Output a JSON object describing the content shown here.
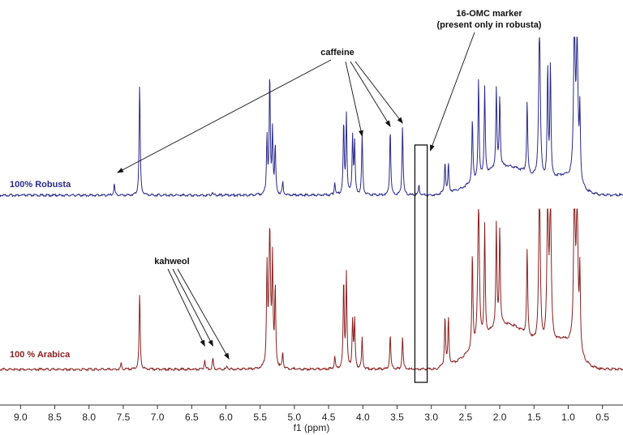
{
  "chart_data": {
    "type": "line",
    "xlabel": "f1 (ppm)",
    "x_reversed": true,
    "xlim": [
      9.3,
      0.2
    ],
    "ticks": [
      9.0,
      8.5,
      8.0,
      7.5,
      7.0,
      6.5,
      6.0,
      5.5,
      5.0,
      4.5,
      4.0,
      3.5,
      3.0,
      2.5,
      2.0,
      1.5,
      1.0,
      0.5
    ],
    "tick_labels": [
      "9.0",
      "8.5",
      "8.0",
      "7.5",
      "7.0",
      "6.5",
      "6.0",
      "5.5",
      "5.0",
      "4.5",
      "4.0",
      "3.5",
      "3.0",
      "2.5",
      "2.0",
      "1.5",
      "1.0",
      "0.5"
    ],
    "grid": false,
    "series": [
      {
        "name": "100%  Robusta",
        "color": "#2a2a8c",
        "peaks": [
          {
            "x": 7.63,
            "h": 0.07
          },
          {
            "x": 7.26,
            "h": 0.7
          },
          {
            "x": 6.2,
            "h": 0.02
          },
          {
            "x": 5.4,
            "h": 0.36
          },
          {
            "x": 5.36,
            "h": 0.75
          },
          {
            "x": 5.32,
            "h": 0.4
          },
          {
            "x": 5.28,
            "h": 0.3
          },
          {
            "x": 5.17,
            "h": 0.08
          },
          {
            "x": 4.41,
            "h": 0.08
          },
          {
            "x": 4.28,
            "h": 0.45
          },
          {
            "x": 4.24,
            "h": 0.5
          },
          {
            "x": 4.15,
            "h": 0.36
          },
          {
            "x": 4.12,
            "h": 0.32
          },
          {
            "x": 4.01,
            "h": 0.38
          },
          {
            "x": 3.6,
            "h": 0.42
          },
          {
            "x": 3.42,
            "h": 0.44
          },
          {
            "x": 3.18,
            "h": 0.06
          },
          {
            "x": 2.8,
            "h": 0.2
          },
          {
            "x": 2.75,
            "h": 0.18
          },
          {
            "x": 2.4,
            "h": 0.4
          },
          {
            "x": 2.31,
            "h": 0.62
          },
          {
            "x": 2.22,
            "h": 0.55
          },
          {
            "x": 2.05,
            "h": 0.5
          },
          {
            "x": 2.0,
            "h": 0.45
          },
          {
            "x": 1.6,
            "h": 0.45
          },
          {
            "x": 1.42,
            "h": 1.0
          },
          {
            "x": 1.3,
            "h": 0.7
          },
          {
            "x": 1.26,
            "h": 0.72
          },
          {
            "x": 0.91,
            "h": 1.0
          },
          {
            "x": 0.87,
            "h": 0.9
          },
          {
            "x": 0.83,
            "h": 0.45
          }
        ]
      },
      {
        "name": "100 % Arabica",
        "color": "#8b2020",
        "peaks": [
          {
            "x": 7.53,
            "h": 0.04
          },
          {
            "x": 7.26,
            "h": 0.48
          },
          {
            "x": 6.31,
            "h": 0.06
          },
          {
            "x": 6.19,
            "h": 0.07
          },
          {
            "x": 5.98,
            "h": 0.02
          },
          {
            "x": 5.4,
            "h": 0.6
          },
          {
            "x": 5.36,
            "h": 0.85
          },
          {
            "x": 5.32,
            "h": 0.65
          },
          {
            "x": 5.28,
            "h": 0.5
          },
          {
            "x": 5.17,
            "h": 0.1
          },
          {
            "x": 4.41,
            "h": 0.08
          },
          {
            "x": 4.28,
            "h": 0.55
          },
          {
            "x": 4.24,
            "h": 0.6
          },
          {
            "x": 4.15,
            "h": 0.3
          },
          {
            "x": 4.12,
            "h": 0.3
          },
          {
            "x": 4.01,
            "h": 0.2
          },
          {
            "x": 3.6,
            "h": 0.22
          },
          {
            "x": 3.42,
            "h": 0.21
          },
          {
            "x": 2.8,
            "h": 0.32
          },
          {
            "x": 2.75,
            "h": 0.3
          },
          {
            "x": 2.4,
            "h": 0.6
          },
          {
            "x": 2.31,
            "h": 0.9
          },
          {
            "x": 2.22,
            "h": 0.7
          },
          {
            "x": 2.05,
            "h": 0.65
          },
          {
            "x": 2.0,
            "h": 0.62
          },
          {
            "x": 1.6,
            "h": 0.55
          },
          {
            "x": 1.42,
            "h": 1.0
          },
          {
            "x": 1.3,
            "h": 0.85
          },
          {
            "x": 1.26,
            "h": 0.88
          },
          {
            "x": 0.91,
            "h": 1.0
          },
          {
            "x": 0.87,
            "h": 0.95
          },
          {
            "x": 0.83,
            "h": 0.5
          }
        ]
      }
    ],
    "annotations": [
      {
        "id": "caffeine",
        "text": "caffeine",
        "targets_ppm": [
          7.63,
          4.01,
          3.6,
          3.42
        ]
      },
      {
        "id": "kahweol",
        "text": "kahweol",
        "targets_ppm": [
          6.31,
          6.19,
          5.98
        ]
      },
      {
        "id": "omc",
        "lines": [
          "16-OMC marker",
          "(present only in robusta)"
        ],
        "target_ppm": 3.18
      },
      {
        "id": "box",
        "x_range_ppm": [
          3.24,
          3.06
        ]
      }
    ]
  }
}
